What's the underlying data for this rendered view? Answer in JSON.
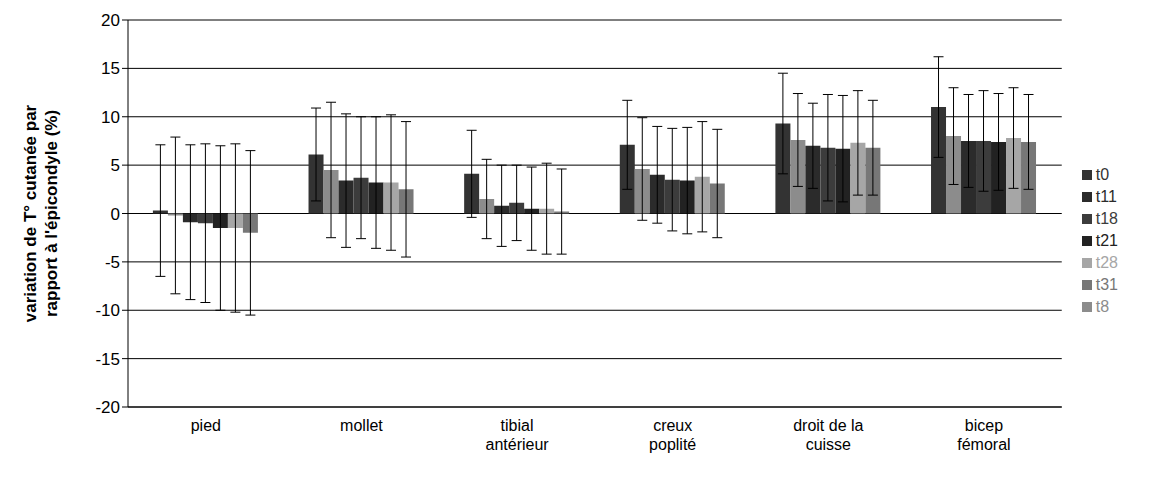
{
  "chart_data": {
    "type": "bar",
    "y_label": "variation de T° cutanée par rapport à l'épicondyle (%)",
    "categories": [
      "pied",
      "mollet",
      "tibial antérieur",
      "creux poplité",
      "droit de la cuisse",
      "bicep fémoral"
    ],
    "series": [
      {
        "name": "t0",
        "color": "#333333",
        "values": [
          0.3,
          6.1,
          4.1,
          7.1,
          9.3,
          11.0
        ],
        "errors": [
          6.8,
          4.8,
          4.5,
          4.6,
          5.2,
          5.2
        ]
      },
      {
        "name": "t8",
        "color": "#8c8c8c",
        "values": [
          -0.2,
          4.5,
          1.5,
          4.6,
          7.6,
          8.0
        ],
        "errors": [
          8.1,
          7.0,
          4.1,
          5.3,
          4.8,
          5.0
        ]
      },
      {
        "name": "t11",
        "color": "#2b2b2b",
        "values": [
          -0.9,
          3.4,
          0.8,
          4.0,
          7.0,
          7.5
        ],
        "errors": [
          8.0,
          6.9,
          4.2,
          5.0,
          4.4,
          4.8
        ]
      },
      {
        "name": "t18",
        "color": "#3c3c3c",
        "values": [
          -1.0,
          3.7,
          1.1,
          3.5,
          6.8,
          7.5
        ],
        "errors": [
          8.2,
          6.3,
          3.9,
          5.3,
          5.5,
          5.2
        ]
      },
      {
        "name": "t21",
        "color": "#222222",
        "values": [
          -1.5,
          3.2,
          0.5,
          3.4,
          6.7,
          7.4
        ],
        "errors": [
          8.5,
          6.8,
          4.3,
          5.5,
          5.5,
          5.0
        ]
      },
      {
        "name": "t28",
        "color": "#a6a6a6",
        "values": [
          -1.5,
          3.2,
          0.5,
          3.8,
          7.3,
          7.8
        ],
        "errors": [
          8.7,
          7.0,
          4.7,
          5.7,
          5.4,
          5.2
        ]
      },
      {
        "name": "t31",
        "color": "#777777",
        "values": [
          -2.0,
          2.5,
          0.2,
          3.1,
          6.8,
          7.4
        ],
        "errors": [
          8.5,
          7.0,
          4.4,
          5.6,
          4.9,
          4.9
        ]
      }
    ],
    "ylim": [
      -20,
      20
    ],
    "yticks": [
      -20,
      -15,
      -10,
      -5,
      0,
      5,
      10,
      15,
      20
    ],
    "grid": true,
    "legend": "right"
  }
}
